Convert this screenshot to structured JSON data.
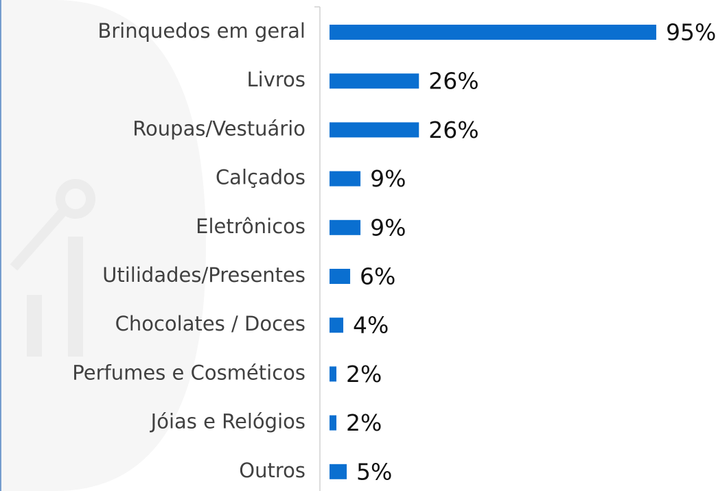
{
  "chart_data": {
    "type": "bar",
    "orientation": "horizontal",
    "categories": [
      "Brinquedos em geral",
      "Livros",
      "Roupas/Vestuário",
      "Calçados",
      "Eletrônicos",
      "Utilidades/Presentes",
      "Chocolates / Doces",
      "Perfumes e Cosméticos",
      "Jóias e Relógios",
      "Outros"
    ],
    "values": [
      95,
      26,
      26,
      9,
      9,
      6,
      4,
      2,
      2,
      5
    ],
    "value_labels": [
      "95%",
      "26%",
      "26%",
      "9%",
      "9%",
      "6%",
      "4%",
      "2%",
      "2%",
      "5%"
    ],
    "color": "#0a6fd0"
  }
}
